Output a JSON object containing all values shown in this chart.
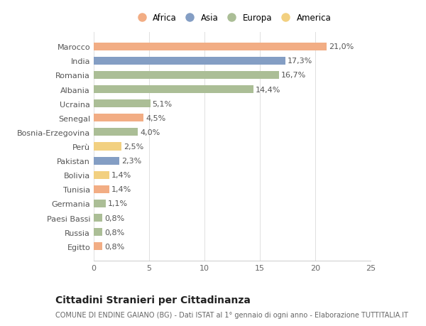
{
  "categories": [
    "Egitto",
    "Russia",
    "Paesi Bassi",
    "Germania",
    "Tunisia",
    "Bolivia",
    "Pakistan",
    "Perù",
    "Bosnia-Erzegovina",
    "Senegal",
    "Ucraina",
    "Albania",
    "Romania",
    "India",
    "Marocco"
  ],
  "values": [
    0.8,
    0.8,
    0.8,
    1.1,
    1.4,
    1.4,
    2.3,
    2.5,
    4.0,
    4.5,
    5.1,
    14.4,
    16.7,
    17.3,
    21.0
  ],
  "labels": [
    "0,8%",
    "0,8%",
    "0,8%",
    "1,1%",
    "1,4%",
    "1,4%",
    "2,3%",
    "2,5%",
    "4,0%",
    "4,5%",
    "5,1%",
    "14,4%",
    "16,7%",
    "17,3%",
    "21,0%"
  ],
  "continents": [
    "Africa",
    "Europa",
    "Europa",
    "Europa",
    "Africa",
    "America",
    "Asia",
    "America",
    "Europa",
    "Africa",
    "Europa",
    "Europa",
    "Europa",
    "Asia",
    "Africa"
  ],
  "continent_colors": {
    "Africa": "#F2AD84",
    "Asia": "#849EC4",
    "Europa": "#ABBE96",
    "America": "#F2D080"
  },
  "legend_order": [
    "Africa",
    "Asia",
    "Europa",
    "America"
  ],
  "xlim": [
    0,
    25
  ],
  "xticks": [
    0,
    5,
    10,
    15,
    20,
    25
  ],
  "title": "Cittadini Stranieri per Cittadinanza",
  "subtitle": "COMUNE DI ENDINE GAIANO (BG) - Dati ISTAT al 1° gennaio di ogni anno - Elaborazione TUTTITALIA.IT",
  "background_color": "#ffffff",
  "bar_height": 0.55,
  "label_fontsize": 8,
  "tick_fontsize": 8,
  "y_tick_fontsize": 8,
  "title_fontsize": 10,
  "subtitle_fontsize": 7
}
